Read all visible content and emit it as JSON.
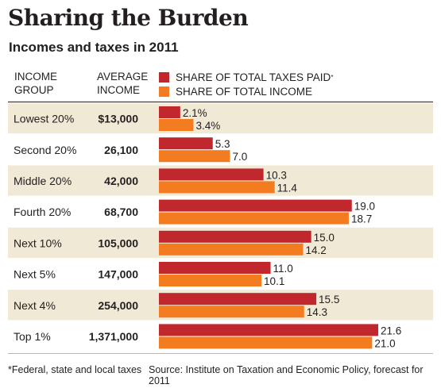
{
  "title": "Sharing the Burden",
  "subtitle": "Incomes and taxes in 2011",
  "headers": {
    "group_line1": "INCOME",
    "group_line2": "GROUP",
    "avg_line1": "AVERAGE",
    "avg_line2": "INCOME"
  },
  "legend": {
    "taxes_label": "SHARE OF TOTAL TAXES PAID",
    "taxes_marker": "*",
    "income_label": "SHARE OF TOTAL INCOME"
  },
  "colors": {
    "taxes": "#c0282d",
    "income": "#f47c20",
    "row_band": "#efe9d5",
    "text": "#231f20"
  },
  "chart_data": {
    "type": "bar",
    "orientation": "horizontal",
    "categories": [
      "Lowest 20%",
      "Second 20%",
      "Middle 20%",
      "Fourth 20%",
      "Next 10%",
      "Next 5%",
      "Next 4%",
      "Top 1%"
    ],
    "average_income": [
      "$13,000",
      "26,100",
      "42,000",
      "68,700",
      "105,000",
      "147,000",
      "254,000",
      "1,371,000"
    ],
    "series": [
      {
        "name": "SHARE OF TOTAL TAXES PAID",
        "values": [
          2.1,
          5.3,
          10.3,
          19.0,
          15.0,
          11.0,
          15.5,
          21.6
        ],
        "labels": [
          "2.1%",
          "5.3",
          "10.3",
          "19.0",
          "15.0",
          "11.0",
          "15.5",
          "21.6"
        ]
      },
      {
        "name": "SHARE OF TOTAL INCOME",
        "values": [
          3.4,
          7.0,
          11.4,
          18.7,
          14.2,
          10.1,
          14.3,
          21.0
        ],
        "labels": [
          "3.4%",
          "7.0",
          "11.4",
          "18.7",
          "14.2",
          "10.1",
          "14.3",
          "21.0"
        ]
      }
    ],
    "xlim": [
      0,
      21.6
    ],
    "grid": false,
    "legend_position": "top"
  },
  "footer": {
    "note": "*Federal, state and local taxes",
    "source": "Source: Institute on Taxation and Economic Policy, forecast for 2011"
  }
}
